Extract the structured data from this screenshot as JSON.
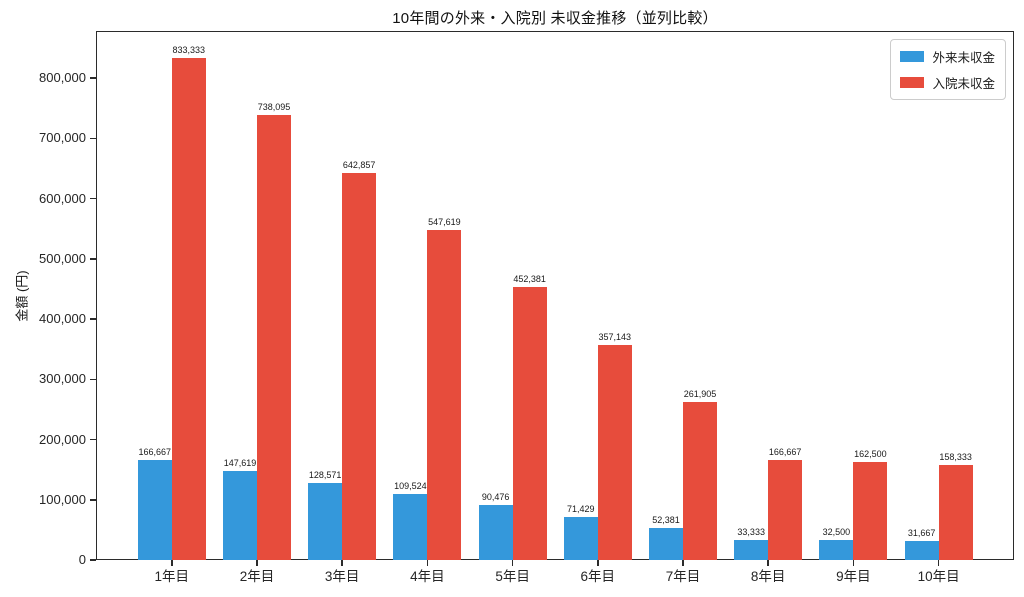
{
  "chart_data": {
    "type": "bar",
    "title": "10年間の外来・入院別 未収金推移（並列比較）",
    "xlabel": "",
    "ylabel": "金額 (円)",
    "categories": [
      "1年目",
      "2年目",
      "3年目",
      "4年目",
      "5年目",
      "6年目",
      "7年目",
      "8年目",
      "9年目",
      "10年目"
    ],
    "series": [
      {
        "name": "外来未収金",
        "color": "#3498db",
        "values": [
          166667,
          147619,
          128571,
          109524,
          90476,
          71429,
          52381,
          33333,
          32500,
          31667
        ],
        "labels": [
          "166,667",
          "147,619",
          "128,571",
          "109,524",
          "90,476",
          "71,429",
          "52,381",
          "33,333",
          "32,500",
          "31,667"
        ]
      },
      {
        "name": "入院未収金",
        "color": "#e74c3c",
        "values": [
          833333,
          738095,
          642857,
          547619,
          452381,
          357143,
          261905,
          166667,
          162500,
          158333
        ],
        "labels": [
          "833,333",
          "738,095",
          "642,857",
          "547,619",
          "452,381",
          "357,143",
          "261,905",
          "166,667",
          "162,500",
          "158,333"
        ]
      }
    ],
    "ylim": [
      0,
      878000
    ],
    "yticks": [
      0,
      100000,
      200000,
      300000,
      400000,
      500000,
      600000,
      700000,
      800000
    ],
    "ytick_labels": [
      "0",
      "100,000",
      "200,000",
      "300,000",
      "400,000",
      "500,000",
      "600,000",
      "700,000",
      "800,000"
    ],
    "grid": false,
    "legend_position": "upper right",
    "bar_value_labels_shown": true
  }
}
